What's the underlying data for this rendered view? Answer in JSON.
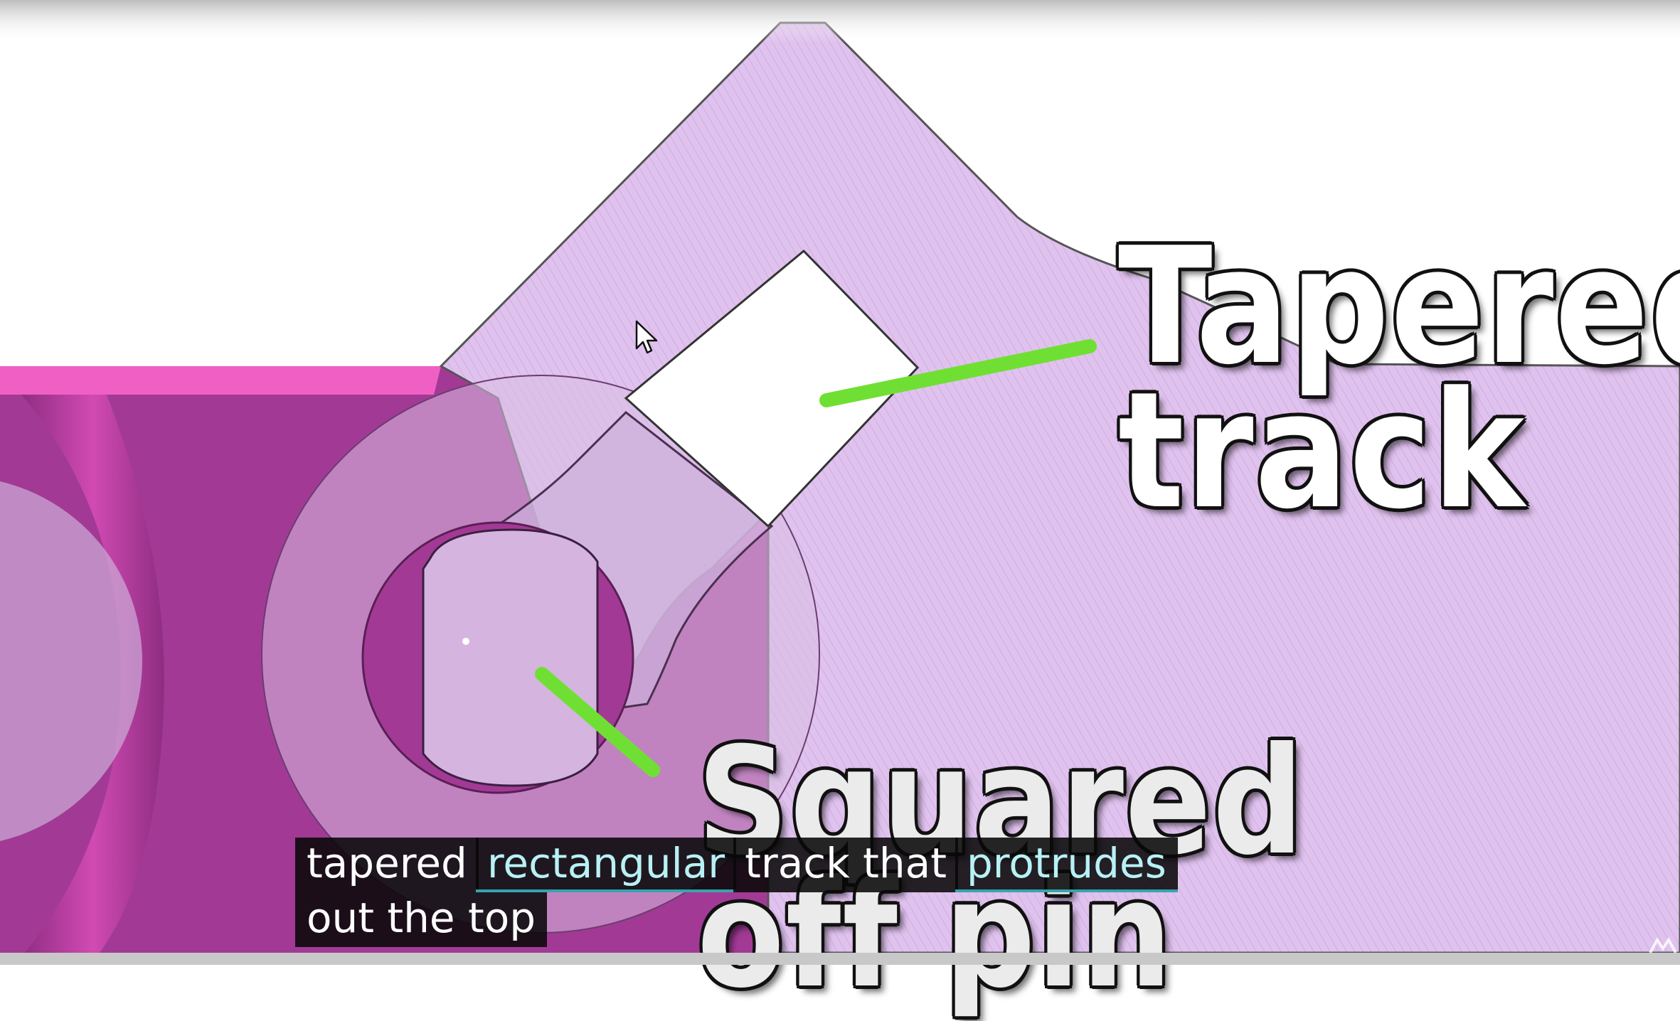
{
  "callouts": {
    "tapered_track_line1": "Tapered",
    "tapered_track_line2": "track",
    "squared_off_pin": "Squared off pin"
  },
  "captions": {
    "line1": [
      {
        "text": "tapered",
        "highlighted": false
      },
      {
        "text": "rectangular",
        "highlighted": true
      },
      {
        "text": "track that",
        "highlighted": false
      },
      {
        "text": "protrudes",
        "highlighted": true
      }
    ],
    "line2": [
      {
        "text": "out the top",
        "highlighted": false
      }
    ]
  },
  "icons": {
    "cursor": "mouse-pointer-icon",
    "player_mark": "player-brand-icon"
  },
  "colors": {
    "lavender_part": "#dfc1ec",
    "magenta_part": "#a23a95",
    "magenta_light": "#e05ab8",
    "pointer_line": "#6fe033",
    "caption_highlight": "#b8f1f5"
  }
}
